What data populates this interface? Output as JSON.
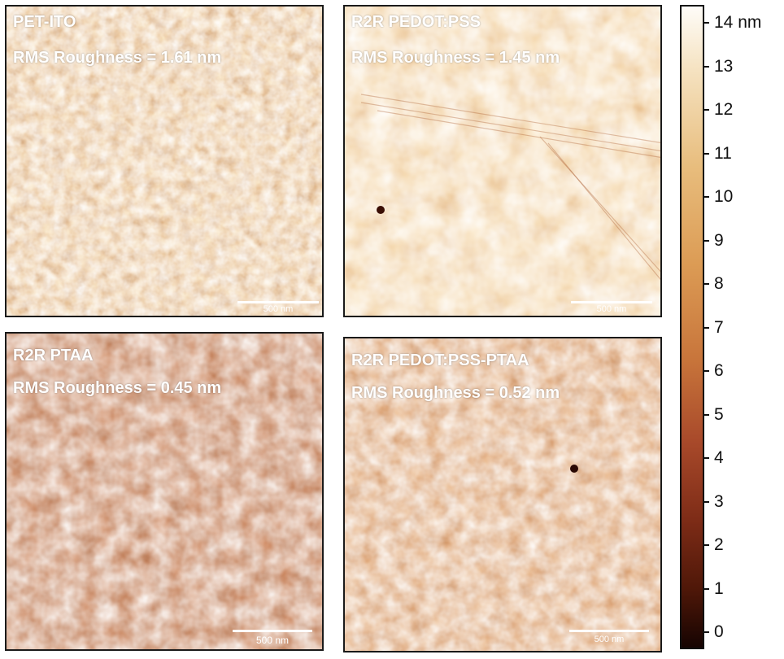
{
  "panels": [
    {
      "title": "PET-ITO",
      "rms": "RMS Roughness = 1.61 nm",
      "scale_label": "500 nm"
    },
    {
      "title": "R2R PEDOT:PSS",
      "rms": "RMS Roughness = 1.45 nm",
      "scale_label": "500 nm"
    },
    {
      "title": "R2R PTAA",
      "rms": "RMS Roughness = 0.45 nm",
      "scale_label": "500 nm"
    },
    {
      "title": "R2R PEDOT:PSS-PTAA",
      "rms": "RMS Roughness = 0.52 nm",
      "scale_label": "500 nm"
    }
  ],
  "colorbar": {
    "ticks": [
      "14 nm",
      "13",
      "12",
      "11",
      "10",
      "9",
      "8",
      "7",
      "6",
      "5",
      "4",
      "3",
      "2",
      "1",
      "0"
    ],
    "colors": {
      "top": "#fefcf8",
      "mid": "#c8753b",
      "bottom": "#160402"
    }
  }
}
